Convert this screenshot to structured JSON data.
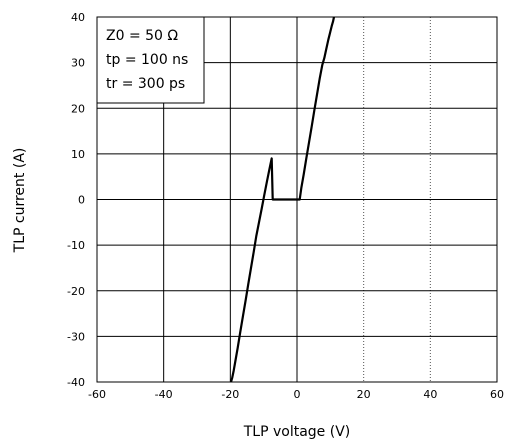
{
  "chart_data": {
    "type": "line",
    "title": "",
    "xlabel": "TLP voltage (V)",
    "ylabel": "TLP current (A)",
    "xlim": [
      -60,
      60
    ],
    "ylim": [
      -40,
      40
    ],
    "xticks": [
      -60,
      -40,
      -20,
      0,
      20,
      40,
      60
    ],
    "yticks": [
      -40,
      -30,
      -20,
      -10,
      0,
      10,
      20,
      30,
      40
    ],
    "xtick_labels": [
      "-60",
      "-40",
      "-20",
      "0",
      "20",
      "40",
      "60"
    ],
    "ytick_labels": [
      "-40",
      "-30",
      "-20",
      "-10",
      "0",
      "10",
      "20",
      "30",
      "40"
    ],
    "grid": true,
    "legend_position": "top-left",
    "annotations": [
      "Z0 = 50 Ω",
      "tp = 100 ns",
      "tr = 300 ps"
    ],
    "series": [
      {
        "color": "#000000",
        "x": [
          -19.8,
          -19.4,
          -19.0,
          -18.5,
          -17.8,
          -17.0,
          -16.2,
          -15.4,
          -14.6,
          -13.8,
          -13.0,
          -12.2,
          -11.4,
          -10.6,
          -9.8,
          -9.0,
          -8.3,
          -7.6,
          -7.3,
          -5.0,
          -2.0,
          0.0,
          0.8,
          1.3,
          2.0,
          2.8,
          3.6,
          4.4,
          5.2,
          6.0,
          6.8,
          7.6,
          8.2,
          8.8,
          9.4,
          9.9,
          10.4,
          10.8,
          11.1
        ],
        "y": [
          -40.0,
          -39.0,
          -37.5,
          -35.5,
          -32.5,
          -29.0,
          -25.5,
          -22.0,
          -18.5,
          -15.0,
          -11.5,
          -8.0,
          -5.0,
          -2.0,
          1.0,
          4.0,
          6.5,
          9.0,
          0.0,
          0.0,
          0.0,
          0.0,
          0.0,
          2.5,
          5.5,
          9.0,
          12.5,
          16.0,
          19.5,
          23.0,
          26.5,
          29.5,
          31.0,
          33.0,
          35.0,
          36.5,
          38.0,
          39.0,
          40.0
        ]
      }
    ]
  }
}
